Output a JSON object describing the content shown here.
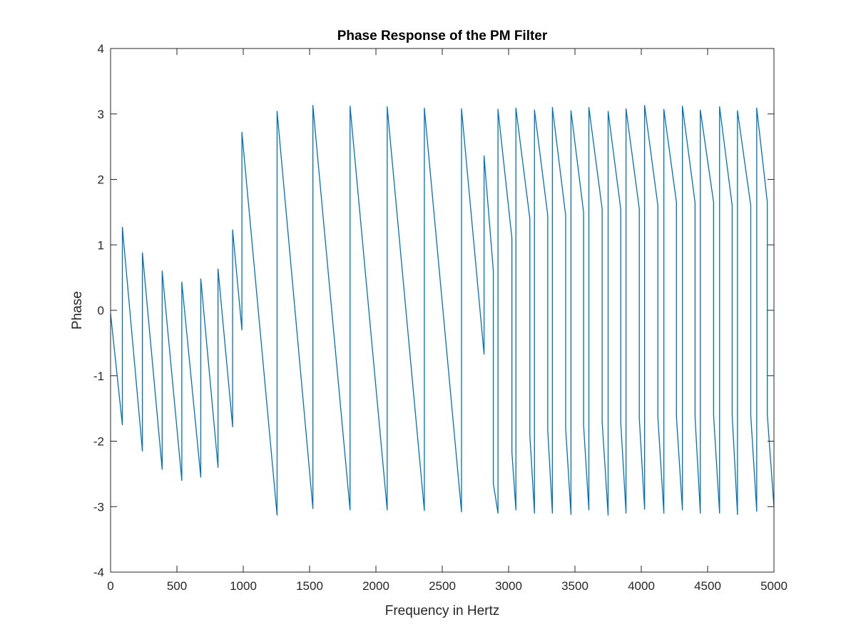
{
  "chart_data": {
    "type": "line",
    "title": "Phase Response of the PM Filter",
    "xlabel": "Frequency in Hertz",
    "ylabel": "Phase",
    "xlim": [
      0,
      5000
    ],
    "ylim": [
      -4,
      4
    ],
    "xticks": [
      0,
      500,
      1000,
      1500,
      2000,
      2500,
      3000,
      3500,
      4000,
      4500,
      5000
    ],
    "yticks": [
      -4,
      -3,
      -2,
      -1,
      0,
      1,
      2,
      3,
      4
    ],
    "grid": false,
    "box": true,
    "series": [
      {
        "color": "#0072BD",
        "x": [
          0,
          89,
          89,
          240,
          240,
          389,
          389,
          537,
          537,
          680,
          680,
          810,
          810,
          920,
          920,
          990,
          990,
          1255,
          1255,
          1525,
          1525,
          1805,
          1805,
          2085,
          2085,
          2365,
          2365,
          2645,
          2645,
          2815,
          2815,
          2885,
          2885,
          2920,
          2920,
          3025,
          3025,
          3055,
          3055,
          3160,
          3160,
          3195,
          3195,
          3295,
          3295,
          3330,
          3330,
          3430,
          3430,
          3470,
          3470,
          3565,
          3565,
          3605,
          3605,
          3705,
          3705,
          3750,
          3750,
          3845,
          3845,
          3885,
          3885,
          3985,
          3985,
          4025,
          4025,
          4125,
          4125,
          4170,
          4170,
          4265,
          4265,
          4310,
          4310,
          4405,
          4405,
          4445,
          4445,
          4545,
          4545,
          4590,
          4590,
          4685,
          4685,
          4725,
          4725,
          4825,
          4825,
          4870,
          4870,
          4950,
          4950,
          5000
        ],
        "y": [
          -0.05,
          -1.75,
          1.27,
          -2.15,
          0.88,
          -2.43,
          0.6,
          -2.6,
          0.43,
          -2.55,
          0.48,
          -2.4,
          0.63,
          -1.78,
          1.23,
          -0.3,
          2.72,
          -3.13,
          3.04,
          -3.03,
          3.13,
          -3.05,
          3.12,
          -3.05,
          3.11,
          -3.06,
          3.09,
          -3.08,
          3.08,
          -0.67,
          2.36,
          0.6,
          -2.65,
          -3.1,
          3.07,
          1.1,
          -2.17,
          -3.05,
          3.09,
          1.4,
          -1.9,
          -3.1,
          3.06,
          1.45,
          -1.83,
          -3.1,
          3.1,
          1.45,
          -1.8,
          -3.12,
          3.05,
          1.5,
          -1.75,
          -3.05,
          3.1,
          1.55,
          -1.7,
          -3.13,
          3.04,
          1.55,
          -1.7,
          -3.1,
          3.08,
          1.55,
          -1.65,
          -3.04,
          3.13,
          1.6,
          -1.63,
          -3.1,
          3.07,
          1.65,
          -1.63,
          -3.05,
          3.12,
          1.65,
          -1.62,
          -3.1,
          3.06,
          1.65,
          -1.6,
          -3.1,
          3.11,
          1.6,
          -1.6,
          -3.12,
          3.05,
          1.6,
          -1.6,
          -3.07,
          3.09,
          1.65,
          -1.6,
          -3.0
        ]
      }
    ]
  }
}
